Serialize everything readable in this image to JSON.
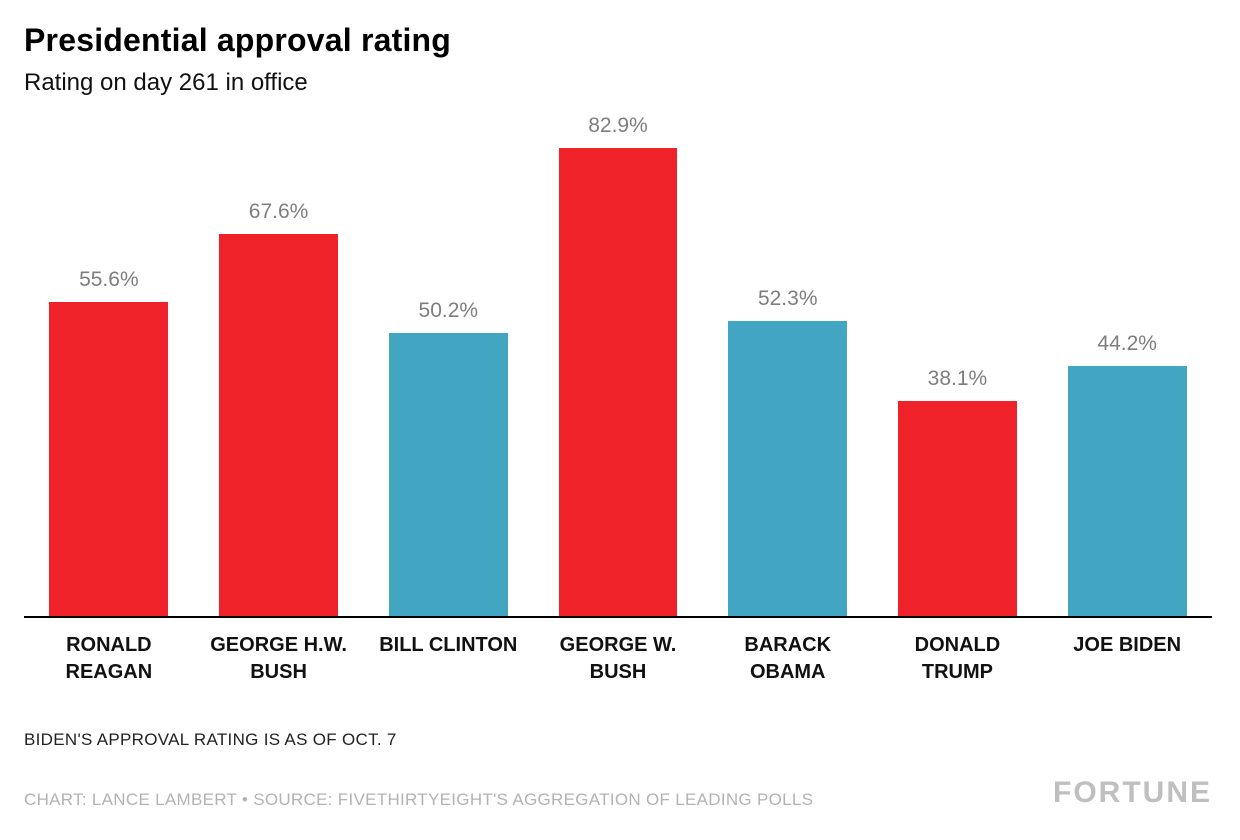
{
  "header": {
    "title": "Presidential approval rating",
    "subtitle": "Rating on day 261 in office"
  },
  "chart_data": {
    "type": "bar",
    "title": "Presidential approval rating",
    "subtitle": "Rating on day 261 in office",
    "categories": [
      "RONALD REAGAN",
      "GEORGE H.W. BUSH",
      "BILL CLINTON",
      "GEORGE W. BUSH",
      "BARACK OBAMA",
      "DONALD TRUMP",
      "JOE BIDEN"
    ],
    "category_lines": [
      [
        "RONALD",
        "REAGAN"
      ],
      [
        "GEORGE H.W.",
        "BUSH"
      ],
      [
        "BILL CLINTON"
      ],
      [
        "GEORGE W.",
        "BUSH"
      ],
      [
        "BARACK",
        "OBAMA"
      ],
      [
        "DONALD",
        "TRUMP"
      ],
      [
        "JOE BIDEN"
      ]
    ],
    "values": [
      55.6,
      67.6,
      50.2,
      82.9,
      52.3,
      38.1,
      44.2
    ],
    "value_labels": [
      "55.6%",
      "67.6%",
      "50.2%",
      "82.9%",
      "52.3%",
      "38.1%",
      "44.2%"
    ],
    "bar_colors": [
      "#ee2228",
      "#ee2228",
      "#42a6c2",
      "#ee2228",
      "#42a6c2",
      "#ee2228",
      "#42a6c2"
    ],
    "xlabel": "",
    "ylabel": "",
    "ylim": [
      0,
      85
    ],
    "grid": false,
    "legend": false
  },
  "colors": {
    "red": "#ee2228",
    "teal": "#42a6c2",
    "value_label": "#7e7e7e",
    "credit_gray": "#b3b3b3"
  },
  "footer": {
    "note": "BIDEN'S APPROVAL RATING IS AS OF OCT. 7",
    "credit": "CHART: LANCE LAMBERT • SOURCE: FIVETHIRTYEIGHT'S AGGREGATION OF LEADING POLLS",
    "brand": "FORTUNE"
  }
}
